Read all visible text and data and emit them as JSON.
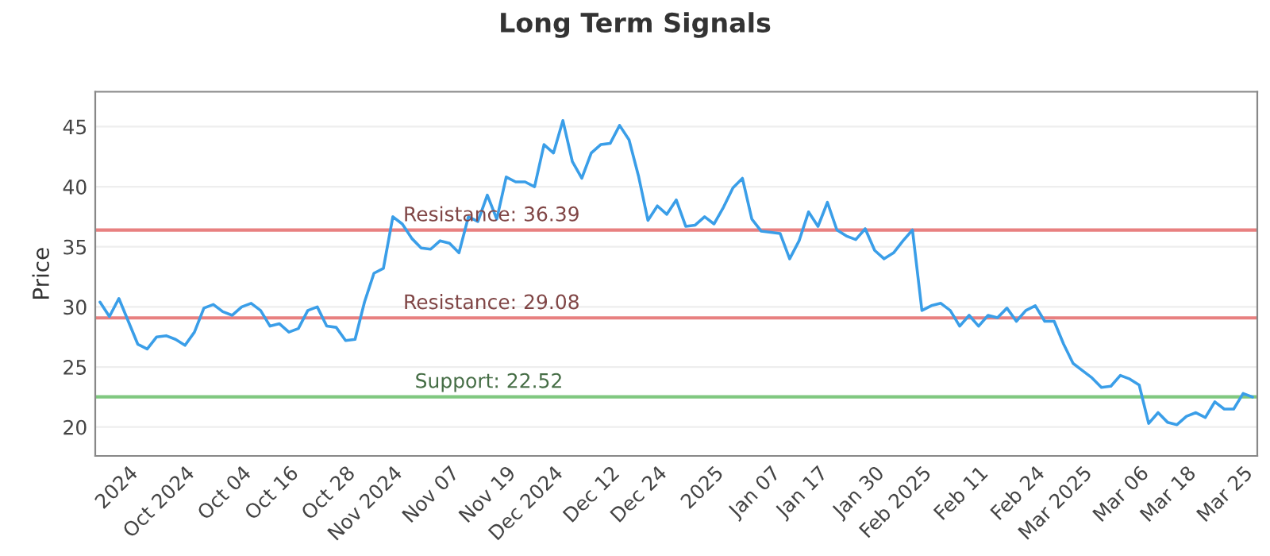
{
  "chart_data": {
    "type": "line",
    "title": "Long Term Signals",
    "ylabel": "Price",
    "categories": [
      null,
      null,
      null,
      "2024",
      null,
      null,
      null,
      null,
      null,
      "Oct 2024",
      null,
      null,
      null,
      null,
      null,
      "Oct 04",
      null,
      null,
      null,
      null,
      "Oct 16",
      null,
      null,
      null,
      null,
      null,
      "Oct 28",
      null,
      null,
      null,
      null,
      "Nov 2024",
      null,
      null,
      null,
      null,
      null,
      "Nov 07",
      null,
      null,
      null,
      null,
      null,
      "Nov 19",
      null,
      null,
      null,
      null,
      "Dec 2024",
      null,
      null,
      null,
      null,
      null,
      "Dec 12",
      null,
      null,
      null,
      null,
      "Dec 24",
      null,
      null,
      null,
      null,
      null,
      "2025",
      null,
      null,
      null,
      null,
      null,
      "Jan 07",
      null,
      null,
      null,
      null,
      "Jan 17",
      null,
      null,
      null,
      null,
      null,
      "Jan 30",
      null,
      null,
      null,
      null,
      "Feb 2025",
      null,
      null,
      null,
      null,
      null,
      "Feb 11",
      null,
      null,
      null,
      null,
      null,
      "Feb 24",
      null,
      null,
      null,
      null,
      "Mar 2025",
      null,
      null,
      null,
      null,
      null,
      "Mar 06",
      null,
      null,
      null,
      null,
      "Mar 18",
      null,
      null,
      null,
      null,
      null,
      "Mar 25",
      null
    ],
    "series": [
      {
        "color": "#3a9ee8",
        "values": [
          30.4,
          29.2,
          30.7,
          28.8,
          26.9,
          26.5,
          27.5,
          27.6,
          27.3,
          26.8,
          27.9,
          29.9,
          30.2,
          29.6,
          29.3,
          30.0,
          30.3,
          29.7,
          28.4,
          28.6,
          27.9,
          28.2,
          29.7,
          30.0,
          28.4,
          28.3,
          27.2,
          27.3,
          30.4,
          32.8,
          33.2,
          37.5,
          36.9,
          35.7,
          34.9,
          34.8,
          35.5,
          35.3,
          34.5,
          37.5,
          37.1,
          39.3,
          37.3,
          40.8,
          40.4,
          40.4,
          40.0,
          43.5,
          42.8,
          45.5,
          42.1,
          40.7,
          42.8,
          43.5,
          43.6,
          45.1,
          43.9,
          40.9,
          37.2,
          38.4,
          37.7,
          38.9,
          36.7,
          36.8,
          37.5,
          36.9,
          38.3,
          39.9,
          40.7,
          37.3,
          36.3,
          36.2,
          36.1,
          34.0,
          35.5,
          37.9,
          36.7,
          38.7,
          36.4,
          35.9,
          35.6,
          36.5,
          34.7,
          34.0,
          34.5,
          35.5,
          36.4,
          29.7,
          30.1,
          30.3,
          29.7,
          28.4,
          29.3,
          28.4,
          29.3,
          29.1,
          29.9,
          28.8,
          29.7,
          30.1,
          28.8,
          28.8,
          26.9,
          25.3,
          24.7,
          24.1,
          23.3,
          23.4,
          24.3,
          24.0,
          23.5,
          20.3,
          21.2,
          20.4,
          20.2,
          20.9,
          21.2,
          20.8,
          22.1,
          21.5,
          21.5,
          22.8,
          22.5
        ]
      }
    ],
    "ylim": [
      17.6,
      47.9
    ],
    "yticks": [
      20,
      25,
      30,
      35,
      40,
      45
    ],
    "grid": "y",
    "marker": "none",
    "line_style": "solid",
    "ref_lines": [
      {
        "axis": "y",
        "value": 36.39,
        "label": "Resistance: 36.39",
        "color": "#e88080"
      },
      {
        "axis": "y",
        "value": 29.08,
        "label": "Resistance: 29.08",
        "color": "#e88080"
      },
      {
        "axis": "y",
        "value": 22.52,
        "label": "Support: 22.52",
        "color": "#80c880"
      }
    ]
  }
}
